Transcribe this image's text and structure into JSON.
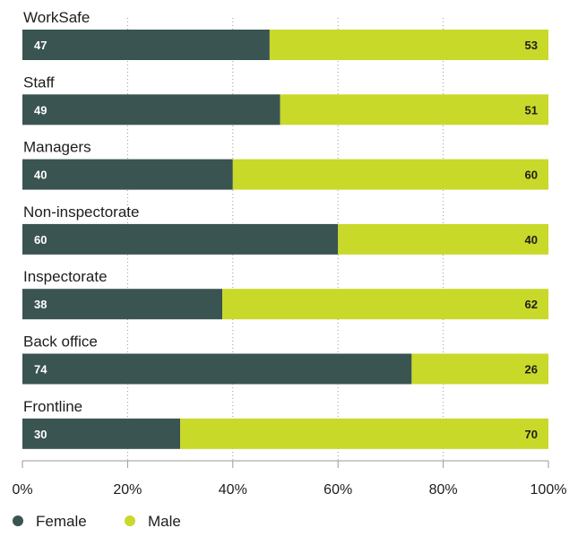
{
  "chart_data": {
    "type": "bar",
    "orientation": "horizontal",
    "stacked": true,
    "categories": [
      "WorkSafe",
      "Staff",
      "Managers",
      "Non-inspectorate",
      "Inspectorate",
      "Back office",
      "Frontline"
    ],
    "series": [
      {
        "name": "Female",
        "values": [
          47,
          49,
          40,
          60,
          38,
          74,
          30
        ],
        "color": "#3a5452"
      },
      {
        "name": "Male",
        "values": [
          53,
          51,
          60,
          40,
          62,
          26,
          70
        ],
        "color": "#c8d92a"
      }
    ],
    "xlim": [
      0,
      100
    ],
    "xticks": [
      0,
      20,
      40,
      60,
      80,
      100
    ],
    "xtick_labels": [
      "0%",
      "20%",
      "40%",
      "60%",
      "80%",
      "100%"
    ],
    "grid": "vertical dotted",
    "legend_position": "bottom-left"
  }
}
